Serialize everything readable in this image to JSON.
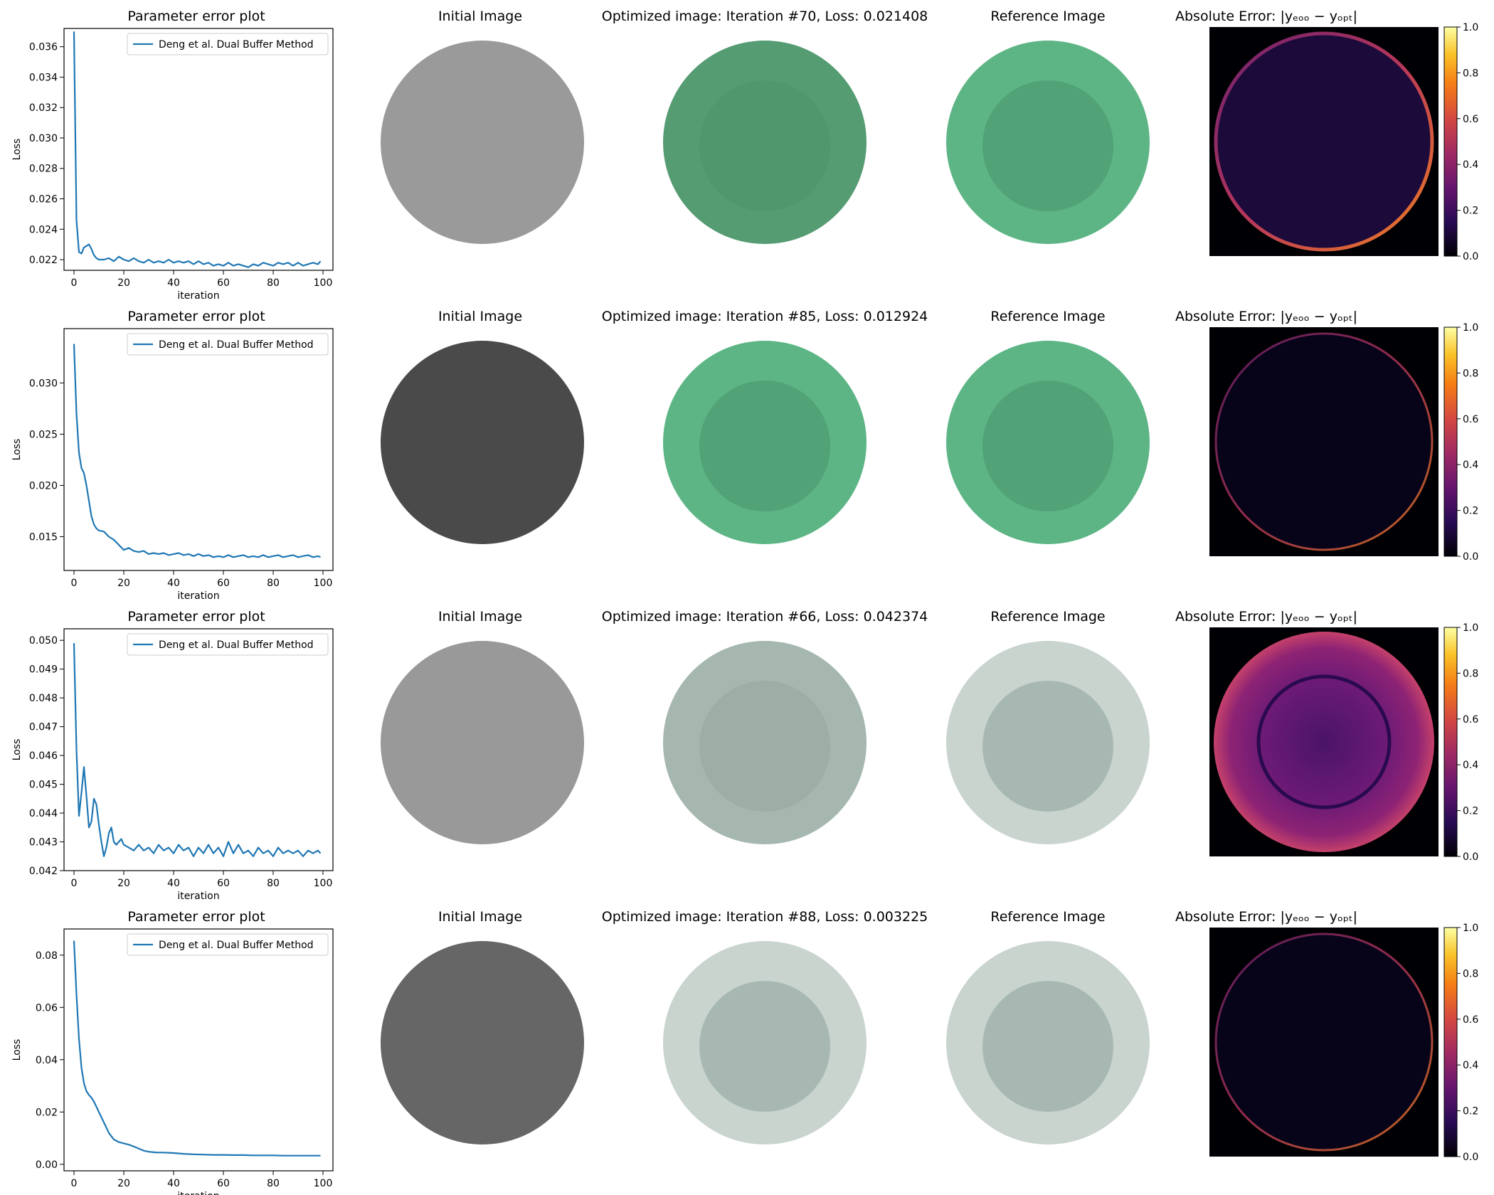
{
  "figure": {
    "rows": [
      {
        "plot_title": "Parameter error plot",
        "initial_title": "Initial Image",
        "optimized_title": "Optimized image: Iteration #70, Loss: 0.021408",
        "reference_title": "Reference Image",
        "error_title": "Absolute Error: |yₑₒₒ − yₒₚₜ|",
        "initial_gray": "#9a9a9a",
        "optimized_fill": "#559c73",
        "optimized_inner": "#4f966d",
        "reference_fill": "#5db585",
        "reference_inner": "#4f9d73",
        "error_style": "dark"
      },
      {
        "plot_title": "Parameter error plot",
        "initial_title": "Initial Image",
        "optimized_title": "Optimized image: Iteration #85, Loss: 0.012924",
        "reference_title": "Reference Image",
        "error_title": "Absolute Error: |yₑₒₒ − yₒₚₜ|",
        "initial_gray": "#4a4a4a",
        "optimized_fill": "#5db585",
        "optimized_inner": "#4f9d73",
        "reference_fill": "#5db585",
        "reference_inner": "#4f9d73",
        "error_style": "black"
      },
      {
        "plot_title": "Parameter error plot",
        "initial_title": "Initial Image",
        "optimized_title": "Optimized image: Iteration #66, Loss: 0.042374",
        "reference_title": "Reference Image",
        "error_title": "Absolute Error: |yₑₒₒ − yₒₚₜ|",
        "initial_gray": "#999999",
        "optimized_fill": "#a5b7ae",
        "optimized_inner": "#9aaba3",
        "reference_fill": "#c9d4cf",
        "reference_inner": "#9fb0aa",
        "error_style": "bright"
      },
      {
        "plot_title": "Parameter error plot",
        "initial_title": "Initial Image",
        "optimized_title": "Optimized image: Iteration #88, Loss: 0.003225",
        "reference_title": "Reference Image",
        "error_title": "Absolute Error: |yₑₒₒ − yₒₚₜ|",
        "initial_gray": "#666666",
        "optimized_fill": "#c9d4cf",
        "optimized_inner": "#9fb0aa",
        "reference_fill": "#c9d4cf",
        "reference_inner": "#9fb0aa",
        "error_style": "black"
      }
    ],
    "colorbar_ticks": [
      "0.0",
      "0.2",
      "0.4",
      "0.6",
      "0.8",
      "1.0"
    ]
  },
  "chart_data": [
    {
      "type": "line",
      "title": "Parameter error plot",
      "xlabel": "iteration",
      "ylabel": "Loss",
      "xlim": [
        -4,
        104
      ],
      "ylim": [
        0.0213,
        0.0372
      ],
      "xticks": [
        0,
        20,
        40,
        60,
        80,
        100
      ],
      "yticks": [
        0.022,
        0.024,
        0.026,
        0.028,
        0.03,
        0.032,
        0.034,
        0.036
      ],
      "ytick_labels": [
        "0.022",
        "0.024",
        "0.026",
        "0.028",
        "0.030",
        "0.032",
        "0.034",
        "0.036"
      ],
      "legend": "top-right",
      "color": "#1f77b4",
      "series": [
        {
          "name": "Deng et al. Dual Buffer Method",
          "x": [
            0,
            1,
            2,
            3,
            4,
            5,
            6,
            7,
            8,
            9,
            10,
            12,
            14,
            16,
            18,
            20,
            22,
            24,
            26,
            28,
            30,
            32,
            34,
            36,
            38,
            40,
            42,
            44,
            46,
            48,
            50,
            52,
            54,
            56,
            58,
            60,
            62,
            64,
            66,
            68,
            70,
            72,
            74,
            76,
            78,
            80,
            82,
            84,
            86,
            88,
            90,
            92,
            94,
            96,
            98,
            99
          ],
          "values": [
            0.037,
            0.0246,
            0.0225,
            0.0224,
            0.0228,
            0.0229,
            0.023,
            0.0227,
            0.0223,
            0.0221,
            0.022,
            0.022,
            0.0221,
            0.0219,
            0.0222,
            0.022,
            0.0219,
            0.0221,
            0.0219,
            0.0218,
            0.022,
            0.0218,
            0.0219,
            0.0218,
            0.022,
            0.0218,
            0.0219,
            0.0218,
            0.0219,
            0.0217,
            0.0219,
            0.0217,
            0.0218,
            0.0216,
            0.0217,
            0.0216,
            0.0218,
            0.0216,
            0.0217,
            0.0216,
            0.0215,
            0.0217,
            0.0216,
            0.0218,
            0.0217,
            0.0216,
            0.0218,
            0.0217,
            0.0218,
            0.0216,
            0.0218,
            0.0216,
            0.0217,
            0.0218,
            0.0217,
            0.0219
          ]
        }
      ]
    },
    {
      "type": "line",
      "title": "Parameter error plot",
      "xlabel": "iteration",
      "ylabel": "Loss",
      "xlim": [
        -4,
        104
      ],
      "ylim": [
        0.0117,
        0.0353
      ],
      "xticks": [
        0,
        20,
        40,
        60,
        80,
        100
      ],
      "yticks": [
        0.015,
        0.02,
        0.025,
        0.03
      ],
      "ytick_labels": [
        "0.015",
        "0.020",
        "0.025",
        "0.030"
      ],
      "legend": "top-right",
      "color": "#1f77b4",
      "series": [
        {
          "name": "Deng et al. Dual Buffer Method",
          "x": [
            0,
            1,
            2,
            3,
            4,
            5,
            6,
            7,
            8,
            9,
            10,
            12,
            14,
            16,
            18,
            20,
            22,
            24,
            26,
            28,
            30,
            32,
            34,
            36,
            38,
            40,
            42,
            44,
            46,
            48,
            50,
            52,
            54,
            56,
            58,
            60,
            62,
            64,
            66,
            68,
            70,
            72,
            74,
            76,
            78,
            80,
            82,
            84,
            86,
            88,
            90,
            92,
            94,
            96,
            98,
            99
          ],
          "values": [
            0.0338,
            0.027,
            0.0232,
            0.0217,
            0.0212,
            0.02,
            0.0185,
            0.017,
            0.0162,
            0.0158,
            0.0156,
            0.0155,
            0.015,
            0.0147,
            0.0142,
            0.0137,
            0.0139,
            0.0136,
            0.0135,
            0.0136,
            0.0133,
            0.0134,
            0.0133,
            0.0134,
            0.0132,
            0.0133,
            0.0134,
            0.0132,
            0.0133,
            0.0131,
            0.0133,
            0.0131,
            0.0132,
            0.013,
            0.0131,
            0.013,
            0.0132,
            0.013,
            0.0131,
            0.0132,
            0.013,
            0.0131,
            0.013,
            0.0132,
            0.013,
            0.0131,
            0.0132,
            0.013,
            0.0131,
            0.0132,
            0.013,
            0.0131,
            0.0132,
            0.013,
            0.0131,
            0.013
          ]
        }
      ]
    },
    {
      "type": "line",
      "title": "Parameter error plot",
      "xlabel": "iteration",
      "ylabel": "Loss",
      "xlim": [
        -4,
        104
      ],
      "ylim": [
        0.042,
        0.0504
      ],
      "xticks": [
        0,
        20,
        40,
        60,
        80,
        100
      ],
      "yticks": [
        0.042,
        0.043,
        0.044,
        0.045,
        0.046,
        0.047,
        0.048,
        0.049,
        0.05
      ],
      "ytick_labels": [
        "0.042",
        "0.043",
        "0.044",
        "0.045",
        "0.046",
        "0.047",
        "0.048",
        "0.049",
        "0.050"
      ],
      "legend": "top-right",
      "color": "#1f77b4",
      "series": [
        {
          "name": "Deng et al. Dual Buffer Method",
          "x": [
            0,
            1,
            2,
            3,
            4,
            5,
            6,
            7,
            8,
            9,
            10,
            11,
            12,
            13,
            14,
            15,
            16,
            17,
            18,
            19,
            20,
            22,
            24,
            26,
            28,
            30,
            32,
            34,
            36,
            38,
            40,
            42,
            44,
            46,
            48,
            50,
            52,
            54,
            56,
            58,
            60,
            62,
            64,
            66,
            68,
            70,
            72,
            74,
            76,
            78,
            80,
            82,
            84,
            86,
            88,
            90,
            92,
            94,
            96,
            98,
            99
          ],
          "values": [
            0.0499,
            0.0462,
            0.0439,
            0.0447,
            0.0456,
            0.0446,
            0.0435,
            0.0437,
            0.0445,
            0.0443,
            0.0436,
            0.043,
            0.0425,
            0.0428,
            0.0433,
            0.0435,
            0.043,
            0.0429,
            0.043,
            0.0431,
            0.0429,
            0.0428,
            0.0427,
            0.0429,
            0.0427,
            0.0428,
            0.0426,
            0.0429,
            0.0427,
            0.0428,
            0.0426,
            0.0429,
            0.0427,
            0.0428,
            0.0425,
            0.0428,
            0.0426,
            0.0429,
            0.0426,
            0.0428,
            0.0425,
            0.043,
            0.0426,
            0.0429,
            0.0426,
            0.0427,
            0.0425,
            0.0428,
            0.0426,
            0.0427,
            0.0425,
            0.0428,
            0.0426,
            0.0427,
            0.0426,
            0.0427,
            0.0425,
            0.0427,
            0.0426,
            0.0427,
            0.0426
          ]
        }
      ]
    },
    {
      "type": "line",
      "title": "Parameter error plot",
      "xlabel": "iteration",
      "ylabel": "Loss",
      "xlim": [
        -4,
        104
      ],
      "ylim": [
        -0.0025,
        0.09
      ],
      "xticks": [
        0,
        20,
        40,
        60,
        80,
        100
      ],
      "yticks": [
        0.0,
        0.02,
        0.04,
        0.06,
        0.08
      ],
      "ytick_labels": [
        "0.00",
        "0.02",
        "0.04",
        "0.06",
        "0.08"
      ],
      "legend": "top-right",
      "color": "#1f77b4",
      "series": [
        {
          "name": "Deng et al. Dual Buffer Method",
          "x": [
            0,
            1,
            2,
            3,
            4,
            5,
            6,
            7,
            8,
            9,
            10,
            12,
            14,
            16,
            18,
            20,
            22,
            24,
            26,
            28,
            30,
            32,
            34,
            36,
            38,
            40,
            44,
            48,
            52,
            56,
            60,
            64,
            68,
            72,
            76,
            80,
            84,
            88,
            92,
            96,
            99
          ],
          "values": [
            0.0855,
            0.065,
            0.048,
            0.037,
            0.031,
            0.028,
            0.0265,
            0.0255,
            0.024,
            0.022,
            0.02,
            0.016,
            0.012,
            0.0095,
            0.0085,
            0.008,
            0.0075,
            0.0068,
            0.006,
            0.0052,
            0.0048,
            0.0046,
            0.0045,
            0.0045,
            0.0044,
            0.0043,
            0.004,
            0.0038,
            0.0037,
            0.0036,
            0.0036,
            0.0035,
            0.0035,
            0.0034,
            0.0034,
            0.0034,
            0.0033,
            0.0033,
            0.0033,
            0.0033,
            0.0033
          ]
        }
      ]
    }
  ]
}
